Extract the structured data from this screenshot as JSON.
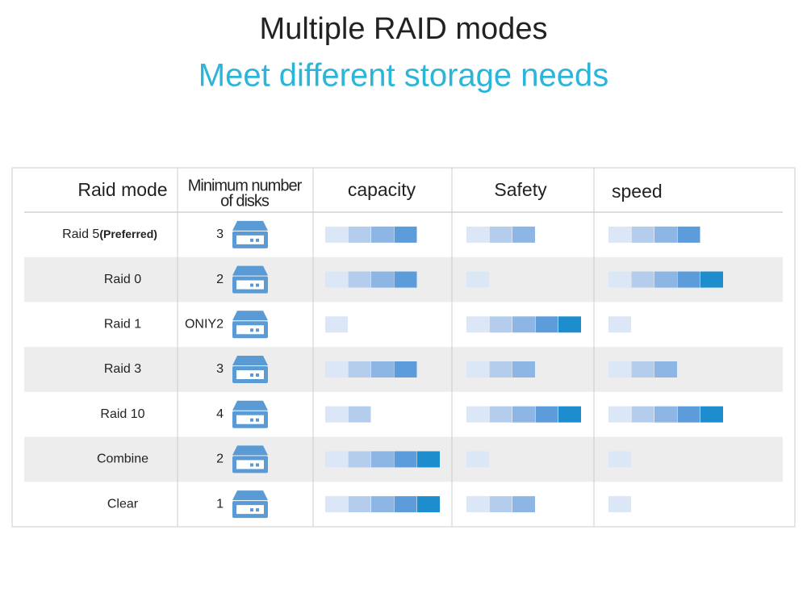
{
  "title": "Multiple RAID modes",
  "subtitle": "Meet different storage needs",
  "table": {
    "headers": {
      "mode": "Raid mode",
      "disks": [
        "Minimum number",
        "of disks"
      ],
      "capacity": "capacity",
      "safety": "Safety",
      "speed": "speed"
    },
    "block_colors": [
      "#dbe7f6",
      "#b4cdec",
      "#8db6e4",
      "#5c9cdb",
      "#1e8dce"
    ],
    "rows": [
      {
        "mode": "Raid 5",
        "note": "(Preferred)",
        "disks": 3,
        "capacity": 4,
        "safety": 3,
        "speed": 4
      },
      {
        "mode": "Raid 0",
        "disks": 2,
        "capacity": 4,
        "safety": 1,
        "speed": 5
      },
      {
        "mode": "Raid 1",
        "disks": "ONIY2",
        "capacity": 1,
        "safety": 5,
        "speed": 1
      },
      {
        "mode": "Raid 3",
        "disks": 3,
        "capacity": 4,
        "safety": 3,
        "speed": 3
      },
      {
        "mode": "Raid 10",
        "disks": 4,
        "capacity": 2,
        "safety": 5,
        "speed": 5
      },
      {
        "mode": "Combine",
        "disks": 2,
        "capacity": 5,
        "safety": 1,
        "speed": 1
      },
      {
        "mode": "Clear",
        "disks": 1,
        "capacity": 5,
        "safety": 3,
        "speed": 1
      }
    ]
  }
}
